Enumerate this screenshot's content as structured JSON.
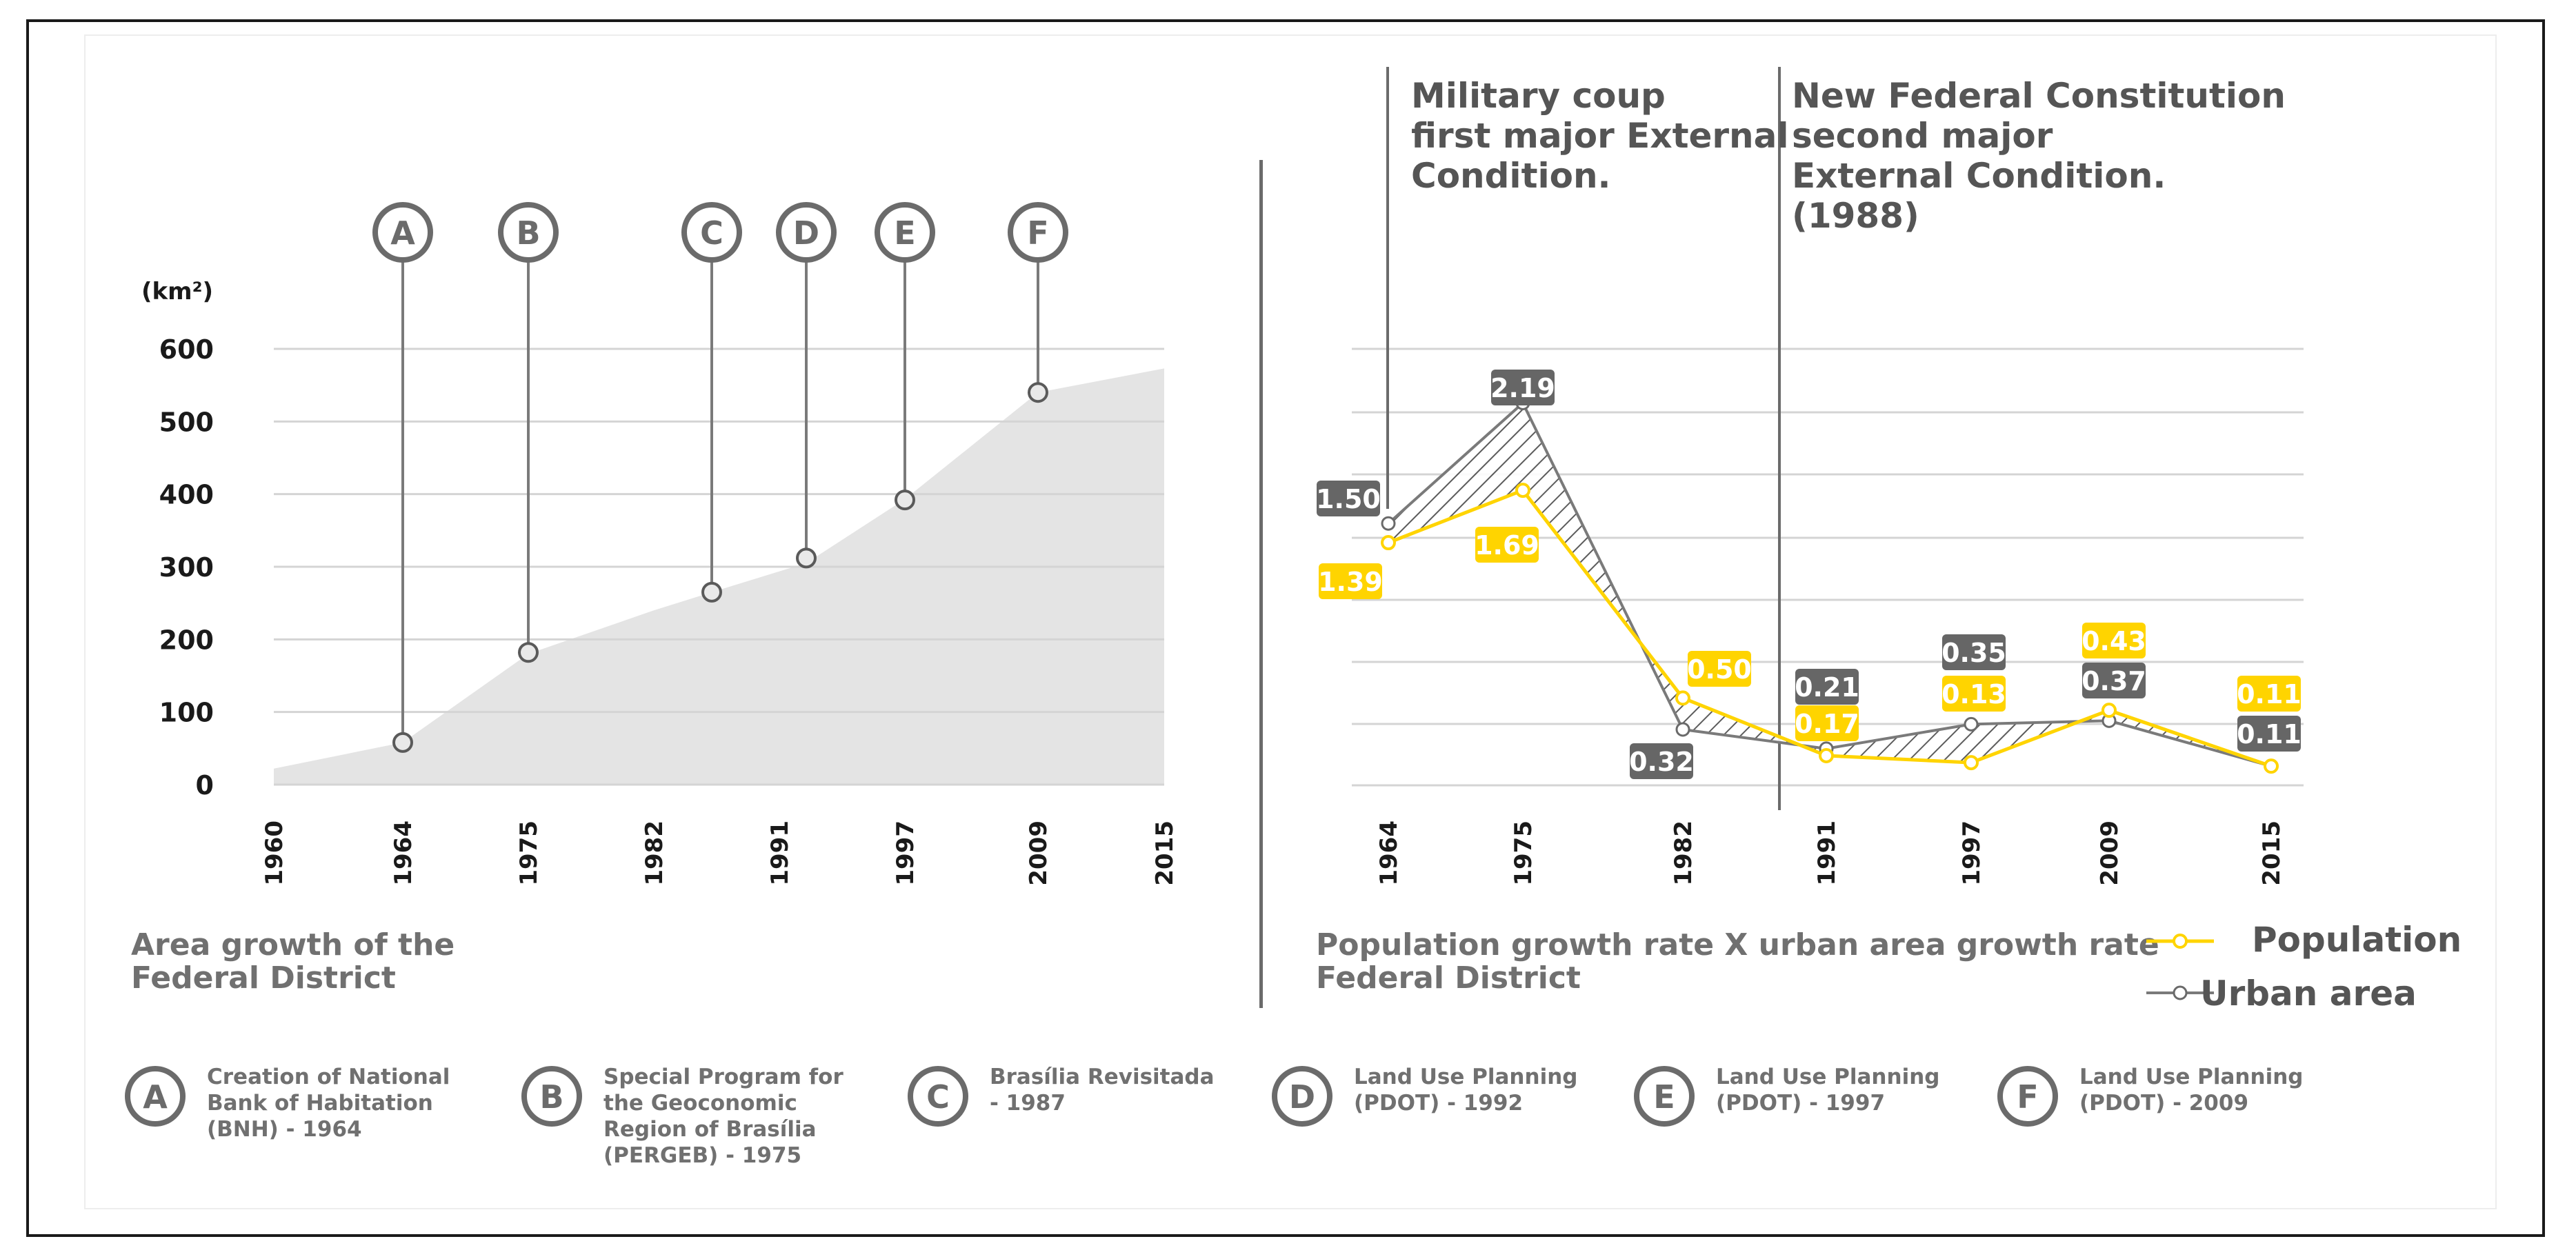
{
  "chart_data": [
    {
      "type": "area",
      "title": "Area growth of the Federal District",
      "ylabel": "(km²)",
      "ylim": [
        0,
        600
      ],
      "yticks": [
        0,
        100,
        200,
        300,
        400,
        500,
        600
      ],
      "xticks": [
        "1960",
        "1964",
        "1975",
        "1982",
        "1991",
        "1997",
        "2009",
        "2015"
      ],
      "area": [
        {
          "x": 1960,
          "y": 22
        },
        {
          "x": 1964,
          "y": 58
        },
        {
          "x": 1975,
          "y": 180
        },
        {
          "x": 1982,
          "y": 240
        },
        {
          "x": 1987,
          "y": 265
        },
        {
          "x": 1992,
          "y": 305
        },
        {
          "x": 1997,
          "y": 393
        },
        {
          "x": 2009,
          "y": 540
        },
        {
          "x": 2015,
          "y": 573
        }
      ],
      "milestones": [
        {
          "letter": "A",
          "x": 1964,
          "y": 58
        },
        {
          "letter": "B",
          "x": 1975,
          "y": 182
        },
        {
          "letter": "C",
          "x": 1987,
          "y": 265
        },
        {
          "letter": "D",
          "x": 1992,
          "y": 312
        },
        {
          "letter": "E",
          "x": 1997,
          "y": 392
        },
        {
          "letter": "F",
          "x": 2009,
          "y": 540
        }
      ]
    },
    {
      "type": "line",
      "title": "Population growth rate X urban area growth rate Federal District",
      "title_lines": [
        "Population growth rate X urban area growth rate",
        "Federal District"
      ],
      "categories": [
        "1964",
        "1975",
        "1982",
        "1991",
        "1997",
        "2009",
        "2015"
      ],
      "series": [
        {
          "name": "Population",
          "color": "#ffd400",
          "values": [
            1.39,
            1.69,
            0.5,
            0.17,
            0.13,
            0.43,
            0.11
          ],
          "labels": [
            "1.39",
            "1.69",
            "0.50",
            "0.17",
            "0.13",
            "0.43",
            "0.11"
          ]
        },
        {
          "name": "Urban area",
          "color": "#7a7a7a",
          "values": [
            1.5,
            2.19,
            0.32,
            0.21,
            0.35,
            0.37,
            0.11
          ],
          "labels": [
            "1.50",
            "2.19",
            "0.32",
            "0.21",
            "0.35",
            "0.37",
            "0.11"
          ]
        }
      ],
      "annotations": [
        {
          "lines": [
            "Military coup",
            "first major External",
            "Condition."
          ]
        },
        {
          "lines": [
            "New Federal Constitution",
            "second major",
            "External Condition.",
            "(1988)"
          ]
        }
      ]
    }
  ],
  "legend_items": [
    {
      "letter": "A",
      "lines": [
        "Creation of National",
        "Bank of Habitation",
        "(BNH) - 1964"
      ]
    },
    {
      "letter": "B",
      "lines": [
        "Special Program for",
        "the Geoconomic",
        "Region of Brasília",
        "(PERGEB) - 1975"
      ]
    },
    {
      "letter": "C",
      "lines": [
        "Brasília Revisitada",
        "- 1987"
      ]
    },
    {
      "letter": "D",
      "lines": [
        "Land Use Planning",
        "(PDOT) - 1992"
      ]
    },
    {
      "letter": "E",
      "lines": [
        "Land Use Planning",
        "(PDOT) - 1997"
      ]
    },
    {
      "letter": "F",
      "lines": [
        "Land Use Planning",
        "(PDOT) - 2009"
      ]
    }
  ],
  "colors": {
    "gray_dark": "#6b6b6b",
    "gray_text": "#707070",
    "yellow": "#ffd400",
    "area_fill": "#e4e4e4",
    "grid": "#d4d4d4"
  }
}
